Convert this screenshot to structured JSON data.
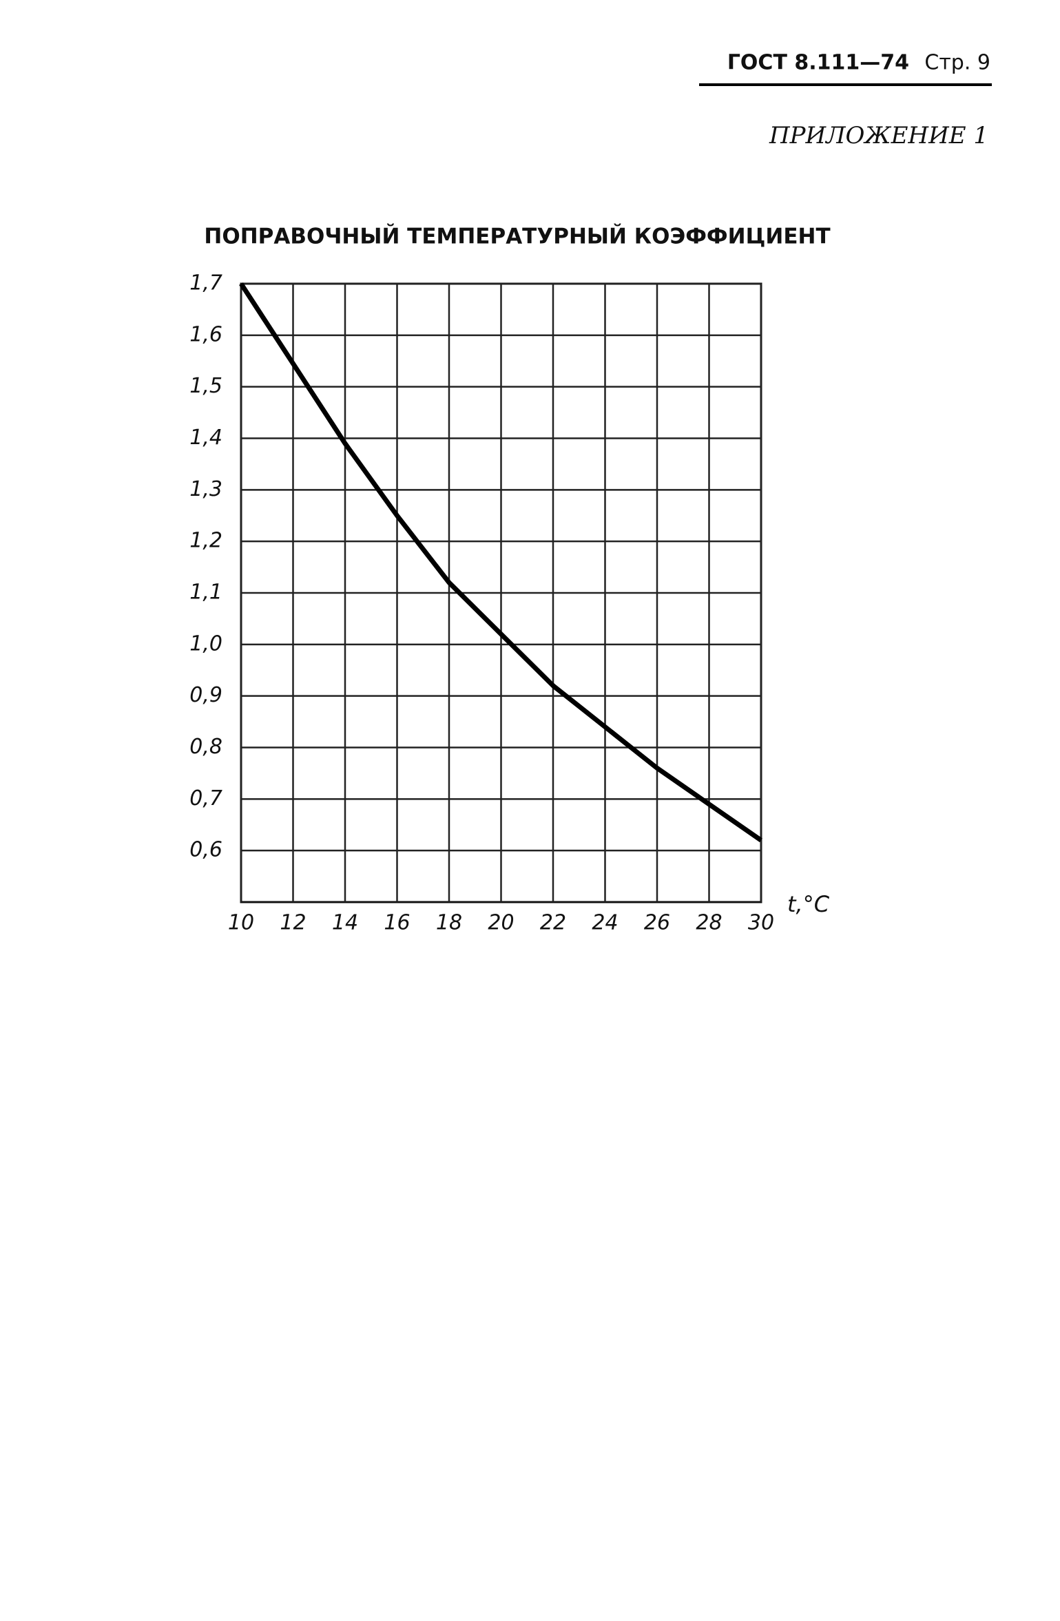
{
  "header": {
    "standard": "ГОСТ 8.111—74",
    "page": "Стр. 9"
  },
  "appendix": "ПРИЛОЖЕНИЕ 1",
  "chart_data": {
    "type": "line",
    "title": "ПОПРАВОЧНЫЙ ТЕМПЕРАТУРНЫЙ КОЭФФИЦИЕНТ",
    "x_label": "t,°C",
    "x": [
      10,
      12,
      14,
      16,
      18,
      20,
      22,
      24,
      26,
      28,
      30
    ],
    "series": [
      {
        "color": "#000000",
        "values": [
          1.7,
          1.545,
          1.39,
          1.25,
          1.12,
          1.02,
          0.92,
          0.84,
          0.76,
          0.69,
          0.62
        ]
      }
    ],
    "xlim": [
      10,
      30
    ],
    "xticks": [
      10,
      12,
      14,
      16,
      18,
      20,
      22,
      24,
      26,
      28,
      30
    ],
    "ylim": [
      0.5,
      1.7
    ],
    "yticks": [
      {
        "value": 1.7,
        "label": "1,7"
      },
      {
        "value": 1.6,
        "label": "1,6"
      },
      {
        "value": 1.5,
        "label": "1,5"
      },
      {
        "value": 1.4,
        "label": "1,4"
      },
      {
        "value": 1.3,
        "label": "1,3"
      },
      {
        "value": 1.2,
        "label": "1,2"
      },
      {
        "value": 1.1,
        "label": "1,1"
      },
      {
        "value": 1.0,
        "label": "1,0"
      },
      {
        "value": 0.9,
        "label": "0,9"
      },
      {
        "value": 0.8,
        "label": "0,8"
      },
      {
        "value": 0.7,
        "label": "0,7"
      },
      {
        "value": 0.6,
        "label": "0,6"
      }
    ],
    "grid": true
  }
}
